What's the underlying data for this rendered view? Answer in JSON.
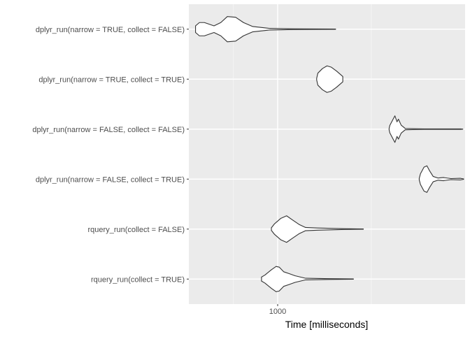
{
  "chart_data": {
    "type": "violin",
    "title": "",
    "xlabel": "Time [milliseconds]",
    "ylabel": "",
    "x_scale": "log10",
    "xlim": [
      560,
      3400
    ],
    "x_ticks": [
      1000
    ],
    "x_tick_labels": [
      "1000"
    ],
    "grid": true,
    "categories": [
      "dplyr_run(narrow = TRUE, collect = FALSE)",
      "dplyr_run(narrow = TRUE, collect = TRUE)",
      "dplyr_run(narrow = FALSE, collect = FALSE)",
      "dplyr_run(narrow = FALSE, collect = TRUE)",
      "rquery_run(collect = FALSE)",
      "rquery_run(collect = TRUE)"
    ],
    "series": [
      {
        "category": "dplyr_run(narrow = TRUE, collect = FALSE)",
        "min": 585,
        "max": 1460,
        "profile": [
          [
            585,
            0.25
          ],
          [
            600,
            0.5
          ],
          [
            620,
            0.5
          ],
          [
            660,
            0.25
          ],
          [
            690,
            0.5
          ],
          [
            720,
            0.95
          ],
          [
            760,
            0.9
          ],
          [
            800,
            0.5
          ],
          [
            850,
            0.2
          ],
          [
            950,
            0.06
          ],
          [
            1100,
            0.03
          ],
          [
            1300,
            0.02
          ],
          [
            1460,
            0.01
          ]
        ]
      },
      {
        "category": "dplyr_run(narrow = TRUE, collect = TRUE)",
        "min": 1290,
        "max": 1530,
        "profile": [
          [
            1290,
            0.05
          ],
          [
            1300,
            0.45
          ],
          [
            1340,
            0.8
          ],
          [
            1380,
            1.0
          ],
          [
            1420,
            0.9
          ],
          [
            1470,
            0.6
          ],
          [
            1530,
            0.2
          ]
        ]
      },
      {
        "category": "dplyr_run(narrow = FALSE, collect = FALSE)",
        "min": 2070,
        "max": 3350,
        "profile": [
          [
            2070,
            0.04
          ],
          [
            2080,
            0.28
          ],
          [
            2120,
            0.7
          ],
          [
            2150,
            1.0
          ],
          [
            2180,
            0.55
          ],
          [
            2200,
            0.75
          ],
          [
            2240,
            0.3
          ],
          [
            2300,
            0.05
          ],
          [
            2600,
            0.02
          ],
          [
            3000,
            0.015
          ],
          [
            3300,
            0.02
          ],
          [
            3350,
            0.005
          ]
        ]
      },
      {
        "category": "dplyr_run(narrow = FALSE, collect = TRUE)",
        "min": 2520,
        "max": 3370,
        "profile": [
          [
            2520,
            0.05
          ],
          [
            2540,
            0.4
          ],
          [
            2600,
            0.9
          ],
          [
            2650,
            1.0
          ],
          [
            2700,
            0.6
          ],
          [
            2760,
            0.2
          ],
          [
            2850,
            0.08
          ],
          [
            2950,
            0.12
          ],
          [
            3100,
            0.04
          ],
          [
            3300,
            0.06
          ],
          [
            3370,
            0.01
          ]
        ]
      },
      {
        "category": "rquery_run(collect = FALSE)",
        "min": 960,
        "max": 1750,
        "profile": [
          [
            960,
            0.1
          ],
          [
            980,
            0.4
          ],
          [
            1020,
            0.8
          ],
          [
            1060,
            1.0
          ],
          [
            1100,
            0.7
          ],
          [
            1150,
            0.35
          ],
          [
            1200,
            0.12
          ],
          [
            1300,
            0.08
          ],
          [
            1450,
            0.05
          ],
          [
            1550,
            0.03
          ],
          [
            1750,
            0.01
          ]
        ]
      },
      {
        "category": "rquery_run(collect = TRUE)",
        "min": 900,
        "max": 1640,
        "profile": [
          [
            900,
            0.15
          ],
          [
            920,
            0.3
          ],
          [
            960,
            0.7
          ],
          [
            990,
            0.95
          ],
          [
            1010,
            0.9
          ],
          [
            1040,
            0.55
          ],
          [
            1080,
            0.4
          ],
          [
            1120,
            0.25
          ],
          [
            1200,
            0.06
          ],
          [
            1400,
            0.03
          ],
          [
            1640,
            0.01
          ]
        ]
      }
    ]
  }
}
